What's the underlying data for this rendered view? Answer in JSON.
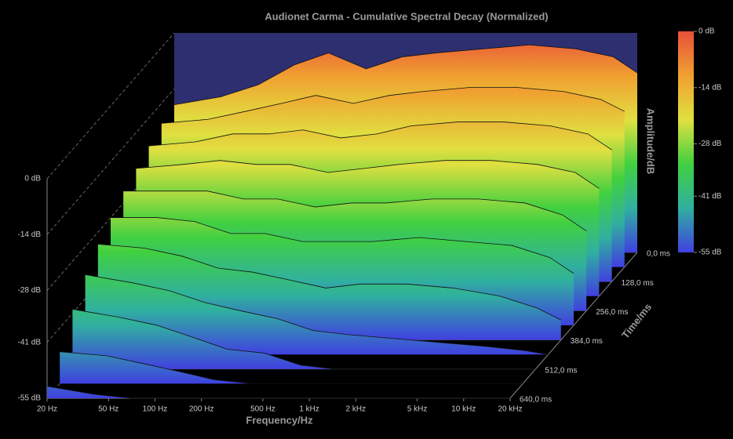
{
  "chart_data": {
    "type": "waterfall",
    "title": "Audionet Carma - Cumulative Spectral Decay (Normalized)",
    "x_label": "Frequency/Hz",
    "y_label": "Amplitude/dB",
    "z_label": "Time/ms",
    "x_scale": "log",
    "x": [
      20,
      40,
      70,
      120,
      200,
      350,
      600,
      1000,
      2000,
      4000,
      8000,
      14000,
      20000
    ],
    "slices": [
      {
        "time": 0,
        "values": [
          -18,
          -16,
          -13,
          -8,
          -5,
          -9,
          -6,
          -5,
          -4,
          -3,
          -4,
          -6,
          -10
        ]
      },
      {
        "time": 64,
        "values": [
          -19,
          -18,
          -16,
          -14,
          -12,
          -14,
          -12,
          -11,
          -10,
          -10,
          -11,
          -13,
          -16
        ]
      },
      {
        "time": 128,
        "values": [
          -21,
          -20,
          -18,
          -18,
          -17,
          -19,
          -18,
          -16,
          -15,
          -15,
          -16,
          -18,
          -22
        ]
      },
      {
        "time": 192,
        "values": [
          -23,
          -22,
          -21,
          -22,
          -22,
          -24,
          -23,
          -22,
          -21,
          -21,
          -22,
          -24,
          -28
        ]
      },
      {
        "time": 256,
        "values": [
          -25,
          -25,
          -25,
          -27,
          -27,
          -29,
          -28,
          -28,
          -27,
          -27,
          -28,
          -31,
          -35
        ]
      },
      {
        "time": 320,
        "values": [
          -28,
          -28,
          -29,
          -32,
          -32,
          -34,
          -34,
          -34,
          -33,
          -34,
          -35,
          -38,
          -42
        ]
      },
      {
        "time": 384,
        "values": [
          -31,
          -32,
          -34,
          -37,
          -38,
          -40,
          -42,
          -41,
          -41,
          -42,
          -44,
          -47,
          -50
        ]
      },
      {
        "time": 448,
        "values": [
          -35,
          -37,
          -39,
          -42,
          -44,
          -46,
          -49,
          -50,
          -51,
          -52,
          -53,
          -54,
          -55
        ]
      },
      {
        "time": 512,
        "values": [
          -40,
          -42,
          -44,
          -47,
          -50,
          -51,
          -54,
          -55,
          -55,
          -55,
          -55,
          -55,
          -55
        ]
      },
      {
        "time": 576,
        "values": [
          -47,
          -48,
          -50,
          -52,
          -54,
          -55,
          -55,
          -55,
          -55,
          -55,
          -55,
          -55,
          -55
        ]
      },
      {
        "time": 640,
        "values": [
          -52,
          -54,
          -55,
          -55,
          -55,
          -55,
          -55,
          -55,
          -55,
          -55,
          -55,
          -55,
          -55
        ]
      }
    ],
    "xlim": [
      20,
      20000
    ],
    "xticks": [
      {
        "value": 20,
        "label": "20 Hz"
      },
      {
        "value": 50,
        "label": "50 Hz"
      },
      {
        "value": 100,
        "label": "100 Hz"
      },
      {
        "value": 200,
        "label": "200 Hz"
      },
      {
        "value": 500,
        "label": "500 Hz"
      },
      {
        "value": 1000,
        "label": "1 kHz"
      },
      {
        "value": 2000,
        "label": "2 kHz"
      },
      {
        "value": 5000,
        "label": "5 kHz"
      },
      {
        "value": 10000,
        "label": "10 kHz"
      },
      {
        "value": 20000,
        "label": "20 kHz"
      }
    ],
    "ylim": [
      -55,
      0
    ],
    "yticks": [
      {
        "value": 0,
        "label": "0 dB"
      },
      {
        "value": -14,
        "label": "-14 dB"
      },
      {
        "value": -28,
        "label": "-28 dB"
      },
      {
        "value": -41,
        "label": "-41 dB"
      },
      {
        "value": -55,
        "label": "-55 dB"
      }
    ],
    "zlim": [
      0,
      640
    ],
    "zticks": [
      {
        "value": 0,
        "label": "0,0 ms"
      },
      {
        "value": 128,
        "label": "128,0 ms"
      },
      {
        "value": 256,
        "label": "256,0 ms"
      },
      {
        "value": 384,
        "label": "384,0 ms"
      },
      {
        "value": 512,
        "label": "512,0 ms"
      },
      {
        "value": 640,
        "label": "640,0 ms"
      }
    ],
    "colormap": [
      "#e8503a",
      "#f0a030",
      "#e0e040",
      "#40d040",
      "#30b0a0",
      "#4040e0"
    ],
    "back_wall_color": "#2e2f70"
  }
}
